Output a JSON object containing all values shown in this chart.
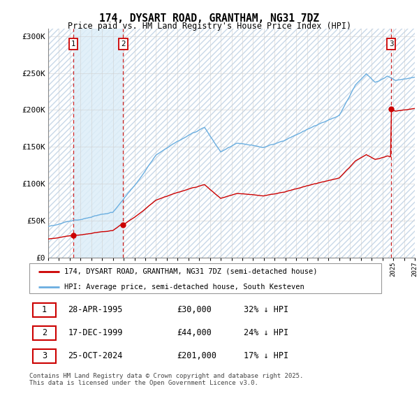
{
  "title": "174, DYSART ROAD, GRANTHAM, NG31 7DZ",
  "subtitle": "Price paid vs. HM Land Registry's House Price Index (HPI)",
  "ylim": [
    0,
    310000
  ],
  "yticks": [
    0,
    50000,
    100000,
    150000,
    200000,
    250000,
    300000
  ],
  "ytick_labels": [
    "£0",
    "£50K",
    "£100K",
    "£150K",
    "£200K",
    "£250K",
    "£300K"
  ],
  "sale_year_1": 1995.32,
  "sale_year_2": 1999.96,
  "sale_year_3": 2024.81,
  "sale_prices": [
    30000,
    44000,
    201000
  ],
  "sale_labels": [
    "1",
    "2",
    "3"
  ],
  "hpi_color": "#6aaee0",
  "sale_color": "#cc0000",
  "transaction_table": [
    {
      "label": "1",
      "date": "28-APR-1995",
      "price": "£30,000",
      "hpi": "32% ↓ HPI"
    },
    {
      "label": "2",
      "date": "17-DEC-1999",
      "price": "£44,000",
      "hpi": "24% ↓ HPI"
    },
    {
      "label": "3",
      "date": "25-OCT-2024",
      "price": "£201,000",
      "hpi": "17% ↓ HPI"
    }
  ],
  "legend_entries": [
    "174, DYSART ROAD, GRANTHAM, NG31 7DZ (semi-detached house)",
    "HPI: Average price, semi-detached house, South Kesteven"
  ],
  "footer": "Contains HM Land Registry data © Crown copyright and database right 2025.\nThis data is licensed under the Open Government Licence v3.0.",
  "xmin": 1993,
  "xmax": 2027,
  "fig_width": 6.0,
  "fig_height": 5.9,
  "dpi": 100
}
